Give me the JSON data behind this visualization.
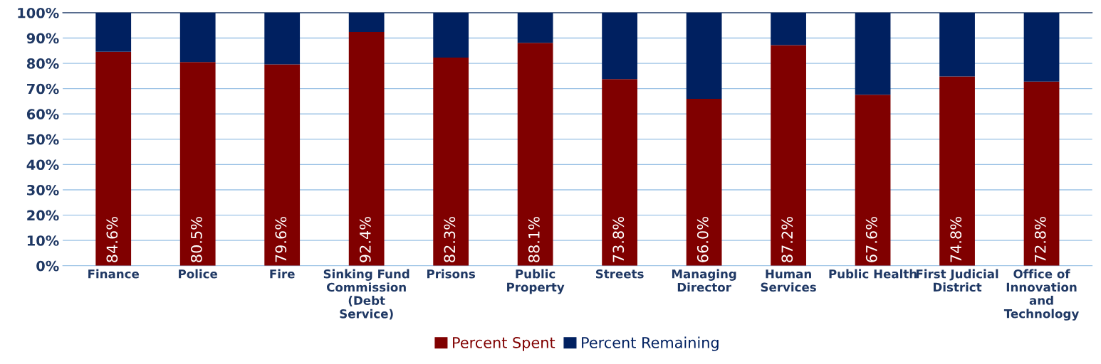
{
  "chart_data": {
    "type": "bar",
    "stacked": true,
    "categories": [
      "Finance",
      "Police",
      "Fire",
      "Sinking Fund\nCommission\n(Debt\nService)",
      "Prisons",
      "Public\nProperty",
      "Streets",
      "Managing\nDirector",
      "Human\nServices",
      "Public Health",
      "First Judicial\nDistrict",
      "Office of\nInnovation\nand\nTechnology"
    ],
    "series": [
      {
        "name": "Percent Spent",
        "color": "#800000",
        "values": [
          84.6,
          80.5,
          79.6,
          92.4,
          82.3,
          88.1,
          73.8,
          66.0,
          87.2,
          67.6,
          74.8,
          72.8
        ],
        "value_labels": [
          "84.6%",
          "80.5%",
          "79.6%",
          "92.4%",
          "82.3%",
          "88.1%",
          "73.8%",
          "66.0%",
          "87.2%",
          "67.6%",
          "74.8%",
          "72.8%"
        ]
      },
      {
        "name": "Percent Remaining",
        "color": "#002060",
        "values": [
          15.4,
          19.5,
          20.4,
          7.6,
          17.7,
          11.9,
          26.2,
          34.0,
          12.8,
          32.4,
          25.2,
          27.2
        ]
      }
    ],
    "ylim": [
      0,
      100
    ],
    "yticks": [
      {
        "value": 0,
        "label": "0%"
      },
      {
        "value": 10,
        "label": "10%"
      },
      {
        "value": 20,
        "label": "20%"
      },
      {
        "value": 30,
        "label": "30%"
      },
      {
        "value": 40,
        "label": "40%"
      },
      {
        "value": 50,
        "label": "50%"
      },
      {
        "value": 60,
        "label": "60%"
      },
      {
        "value": 70,
        "label": "70%"
      },
      {
        "value": 80,
        "label": "80%"
      },
      {
        "value": 90,
        "label": "90%"
      },
      {
        "value": 100,
        "label": "100%"
      }
    ],
    "grid": "y",
    "legend": "bottom"
  }
}
